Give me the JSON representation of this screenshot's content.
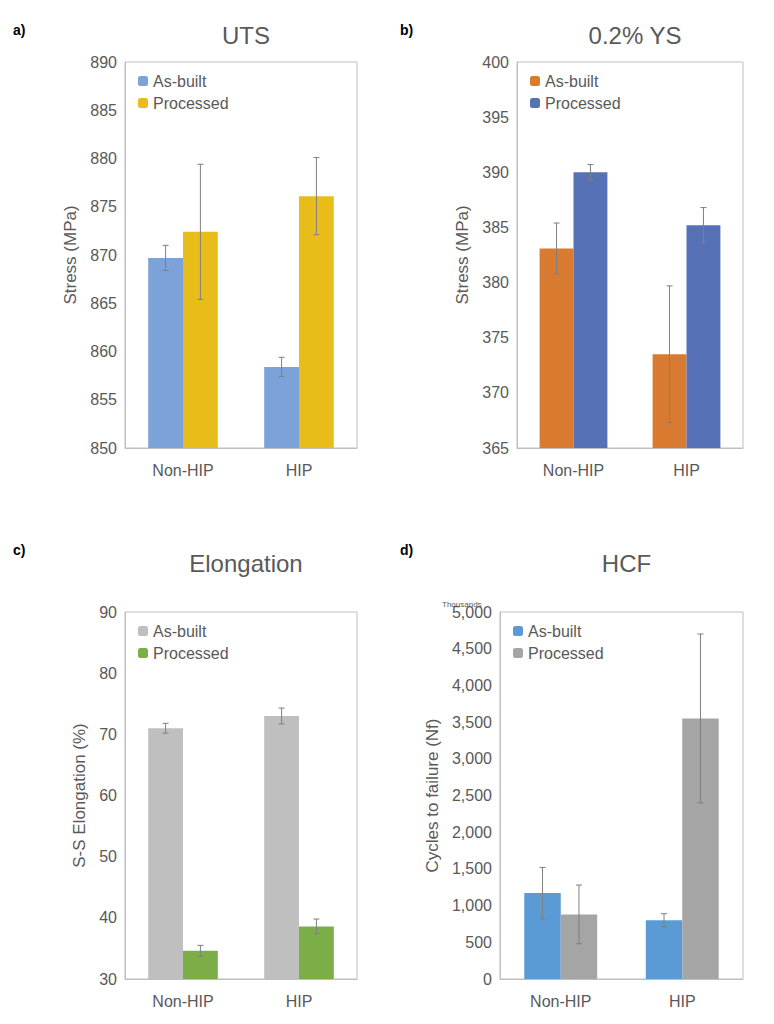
{
  "chart_data": [
    {
      "type": "bar",
      "panel_label": "a)",
      "title": "UTS",
      "y_label": "Stress (MPa)",
      "categories": [
        "Non-HIP",
        "HIP"
      ],
      "series": [
        {
          "name": "As-built",
          "color": "#7ba3d9",
          "values": [
            869.7,
            858.4
          ],
          "errors": [
            1.3,
            1.0
          ]
        },
        {
          "name": "Processed",
          "color": "#e8bd1a",
          "values": [
            872.4,
            876.1
          ],
          "errors": [
            7.0,
            4.0
          ]
        }
      ],
      "ylim": [
        850,
        890
      ],
      "yticks": [
        850,
        855,
        860,
        865,
        870,
        875,
        880,
        885,
        890
      ],
      "grid": false,
      "legend": "upper left"
    },
    {
      "type": "bar",
      "panel_label": "b)",
      "title": "0.2% YS",
      "y_label": "Stress (MPa)",
      "categories": [
        "Non-HIP",
        "HIP"
      ],
      "series": [
        {
          "name": "As-built",
          "color": "#d87a30",
          "values": [
            383.1,
            373.5
          ],
          "errors": [
            2.3,
            6.2
          ]
        },
        {
          "name": "Processed",
          "color": "#5671b6",
          "values": [
            390.0,
            385.2
          ],
          "errors": [
            0.7,
            1.6
          ]
        }
      ],
      "ylim": [
        365,
        400
      ],
      "yticks": [
        365,
        370,
        375,
        380,
        385,
        390,
        395,
        400
      ],
      "grid": false,
      "legend": "upper left"
    },
    {
      "type": "bar",
      "panel_label": "c)",
      "title": "Elongation",
      "y_label": "S-S Elongation (%)",
      "categories": [
        "Non-HIP",
        "HIP"
      ],
      "series": [
        {
          "name": "As-built",
          "color": "#bfbfbf",
          "values": [
            71.0,
            73.0
          ],
          "errors": [
            0.8,
            1.3
          ]
        },
        {
          "name": "Processed",
          "color": "#7cae48",
          "values": [
            34.6,
            38.6
          ],
          "errors": [
            0.9,
            1.2
          ]
        }
      ],
      "ylim": [
        30,
        90
      ],
      "yticks": [
        30,
        40,
        50,
        60,
        70,
        80,
        90
      ],
      "grid": false,
      "legend": "upper left"
    },
    {
      "type": "bar",
      "panel_label": "d)",
      "title": "HCF",
      "y_label": "Cycles to failure (Nf)",
      "annotations": [
        "Thousands"
      ],
      "categories": [
        "Non-HIP",
        "HIP"
      ],
      "series": [
        {
          "name": "As-built",
          "color": "#5b9bd5",
          "values": [
            1170,
            800
          ],
          "errors": [
            350,
            90
          ]
        },
        {
          "name": "Processed",
          "color": "#a5a5a5",
          "values": [
            880,
            3550
          ],
          "errors": [
            400,
            1150
          ]
        }
      ],
      "ylim": [
        0,
        5000
      ],
      "yticks": [
        0,
        500,
        {
          "value": 1000,
          "label": "1,000"
        },
        {
          "value": 1500,
          "label": "1,500"
        },
        {
          "value": 2000,
          "label": "2,000"
        },
        {
          "value": 2500,
          "label": "2,500"
        },
        {
          "value": 3000,
          "label": "3,000"
        },
        {
          "value": 3500,
          "label": "3,500"
        },
        {
          "value": 4000,
          "label": "4,000"
        },
        {
          "value": 4500,
          "label": "4,500"
        },
        {
          "value": 5000,
          "label": "5,000"
        }
      ],
      "grid": false,
      "legend": "upper left"
    }
  ]
}
